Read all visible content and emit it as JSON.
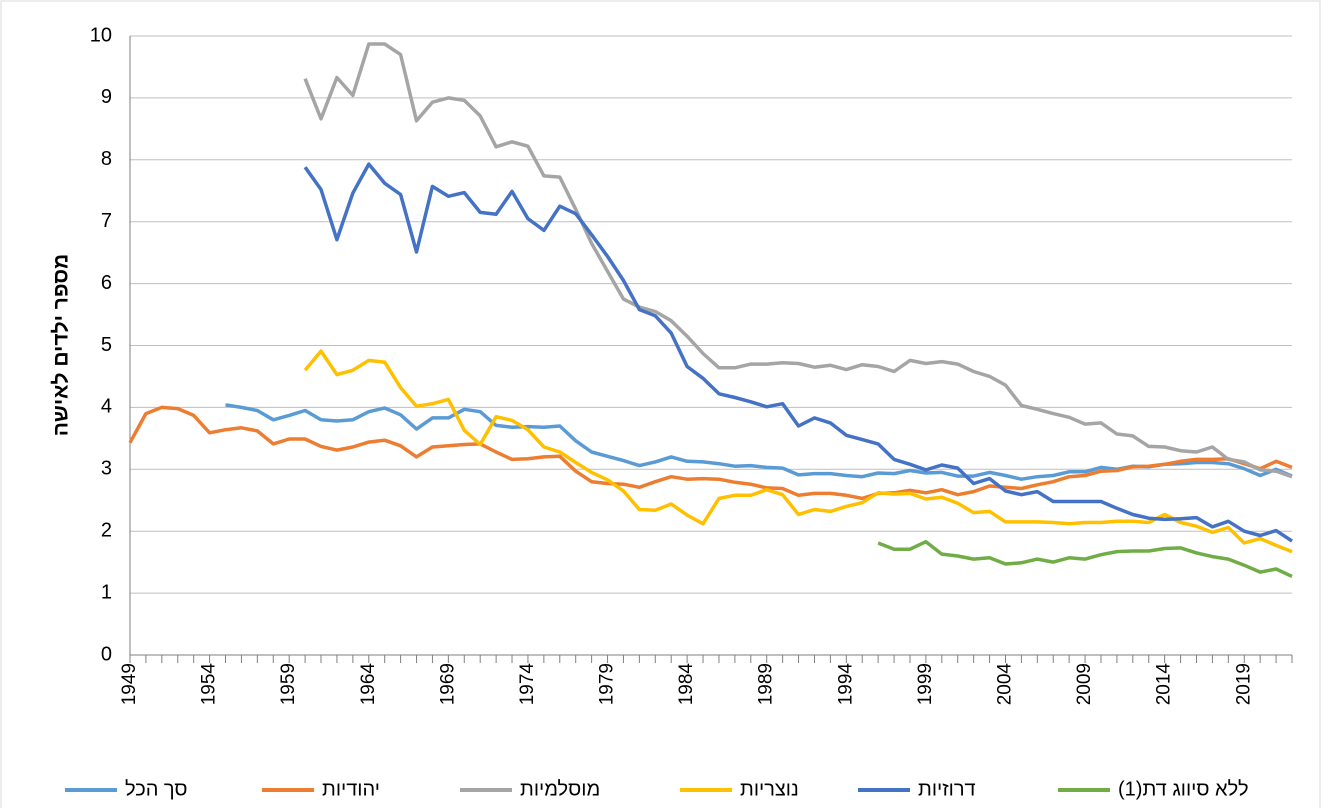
{
  "chart_data": {
    "type": "line",
    "ylabel": "מספר ילדים לאישה",
    "x": [
      1949,
      1950,
      1951,
      1952,
      1953,
      1954,
      1955,
      1956,
      1957,
      1958,
      1959,
      1960,
      1961,
      1962,
      1963,
      1964,
      1965,
      1966,
      1967,
      1968,
      1969,
      1970,
      1971,
      1972,
      1973,
      1974,
      1975,
      1976,
      1977,
      1978,
      1979,
      1980,
      1981,
      1982,
      1983,
      1984,
      1985,
      1986,
      1987,
      1988,
      1989,
      1990,
      1991,
      1992,
      1993,
      1994,
      1995,
      1996,
      1997,
      1998,
      1999,
      2000,
      2001,
      2002,
      2003,
      2004,
      2005,
      2006,
      2007,
      2008,
      2009,
      2010,
      2011,
      2012,
      2013,
      2014,
      2015,
      2016,
      2017,
      2018,
      2019,
      2020,
      2021,
      2022
    ],
    "xlim": [
      1949,
      2022
    ],
    "xticks": [
      1949,
      1954,
      1959,
      1964,
      1969,
      1974,
      1979,
      1984,
      1989,
      1994,
      1999,
      2004,
      2009,
      2014,
      2019
    ],
    "ylim": [
      0,
      10
    ],
    "yticks": [
      0,
      1,
      2,
      3,
      4,
      5,
      6,
      7,
      8,
      9,
      10
    ],
    "grid": true,
    "legend": "bottom",
    "series": [
      {
        "name": "סך הכל",
        "color": "#5b9bd5",
        "values": [
          null,
          null,
          null,
          null,
          null,
          null,
          4.04,
          4.0,
          3.95,
          3.8,
          3.87,
          3.95,
          3.8,
          3.78,
          3.8,
          3.93,
          3.99,
          3.88,
          3.65,
          3.83,
          3.83,
          3.97,
          3.93,
          3.71,
          3.68,
          3.69,
          3.68,
          3.7,
          3.46,
          3.28,
          3.21,
          3.14,
          3.06,
          3.12,
          3.2,
          3.13,
          3.12,
          3.09,
          3.05,
          3.06,
          3.03,
          3.02,
          2.91,
          2.93,
          2.93,
          2.9,
          2.88,
          2.94,
          2.93,
          2.98,
          2.94,
          2.95,
          2.89,
          2.89,
          2.95,
          2.9,
          2.84,
          2.88,
          2.9,
          2.96,
          2.96,
          3.03,
          3.0,
          3.05,
          3.04,
          3.08,
          3.09,
          3.11,
          3.11,
          3.09,
          3.01,
          2.9,
          3.0,
          2.89
        ]
      },
      {
        "name": "יהודיות",
        "color": "#ed7d31",
        "values": [
          3.43,
          3.9,
          4.0,
          3.98,
          3.87,
          3.59,
          3.64,
          3.67,
          3.62,
          3.41,
          3.49,
          3.49,
          3.37,
          3.31,
          3.36,
          3.44,
          3.47,
          3.38,
          3.2,
          3.36,
          3.38,
          3.4,
          3.41,
          3.28,
          3.16,
          3.17,
          3.2,
          3.21,
          2.97,
          2.8,
          2.77,
          2.76,
          2.71,
          2.8,
          2.88,
          2.84,
          2.85,
          2.84,
          2.79,
          2.76,
          2.7,
          2.69,
          2.58,
          2.61,
          2.61,
          2.58,
          2.53,
          2.61,
          2.62,
          2.66,
          2.62,
          2.67,
          2.59,
          2.64,
          2.73,
          2.71,
          2.69,
          2.75,
          2.8,
          2.88,
          2.9,
          2.97,
          2.98,
          3.04,
          3.05,
          3.08,
          3.13,
          3.16,
          3.16,
          3.17,
          3.09,
          3.01,
          3.13,
          3.03
        ]
      },
      {
        "name": "מוסלמיות",
        "color": "#a5a5a5",
        "values": [
          null,
          null,
          null,
          null,
          null,
          null,
          null,
          null,
          null,
          null,
          null,
          9.31,
          8.66,
          9.33,
          9.04,
          9.87,
          9.87,
          9.7,
          8.63,
          8.93,
          9.0,
          8.96,
          8.71,
          8.21,
          8.29,
          8.22,
          7.74,
          7.72,
          7.2,
          6.65,
          6.2,
          5.75,
          5.62,
          5.55,
          5.4,
          5.15,
          4.87,
          4.64,
          4.64,
          4.7,
          4.7,
          4.72,
          4.71,
          4.65,
          4.68,
          4.61,
          4.69,
          4.66,
          4.58,
          4.76,
          4.71,
          4.74,
          4.7,
          4.58,
          4.5,
          4.36,
          4.03,
          3.97,
          3.9,
          3.84,
          3.73,
          3.75,
          3.57,
          3.54,
          3.37,
          3.36,
          3.3,
          3.28,
          3.36,
          3.16,
          3.12,
          2.99,
          2.97,
          2.88
        ]
      },
      {
        "name": "נוצריות",
        "color": "#ffc000",
        "values": [
          null,
          null,
          null,
          null,
          null,
          null,
          null,
          null,
          null,
          null,
          null,
          4.6,
          4.91,
          4.53,
          4.6,
          4.76,
          4.73,
          4.32,
          4.02,
          4.06,
          4.13,
          3.63,
          3.4,
          3.85,
          3.79,
          3.64,
          3.36,
          3.28,
          3.11,
          2.95,
          2.83,
          2.65,
          2.35,
          2.34,
          2.44,
          2.26,
          2.12,
          2.53,
          2.58,
          2.58,
          2.67,
          2.59,
          2.27,
          2.35,
          2.32,
          2.4,
          2.46,
          2.62,
          2.6,
          2.61,
          2.52,
          2.55,
          2.45,
          2.3,
          2.32,
          2.15,
          2.15,
          2.15,
          2.14,
          2.12,
          2.14,
          2.14,
          2.16,
          2.16,
          2.14,
          2.27,
          2.14,
          2.08,
          1.98,
          2.06,
          1.81,
          1.88,
          1.77,
          1.67
        ]
      },
      {
        "name": "דרוזיות",
        "color": "#4472c4",
        "values": [
          null,
          null,
          null,
          null,
          null,
          null,
          null,
          null,
          null,
          null,
          null,
          7.88,
          7.52,
          6.71,
          7.46,
          7.93,
          7.62,
          7.44,
          6.51,
          7.57,
          7.41,
          7.47,
          7.15,
          7.12,
          7.49,
          7.05,
          6.86,
          7.25,
          7.13,
          6.79,
          6.44,
          6.05,
          5.58,
          5.48,
          5.2,
          4.66,
          4.47,
          4.22,
          4.16,
          4.09,
          4.01,
          4.06,
          3.7,
          3.83,
          3.75,
          3.55,
          3.48,
          3.41,
          3.16,
          3.08,
          2.99,
          3.07,
          3.02,
          2.77,
          2.85,
          2.65,
          2.59,
          2.64,
          2.48,
          2.48,
          2.48,
          2.48,
          2.37,
          2.27,
          2.21,
          2.19,
          2.2,
          2.22,
          2.07,
          2.16,
          2.0,
          1.93,
          2.01,
          1.84
        ]
      },
      {
        "name": "ללא סיווג דת(1)",
        "color": "#70ad47",
        "values": [
          null,
          null,
          null,
          null,
          null,
          null,
          null,
          null,
          null,
          null,
          null,
          null,
          null,
          null,
          null,
          null,
          null,
          null,
          null,
          null,
          null,
          null,
          null,
          null,
          null,
          null,
          null,
          null,
          null,
          null,
          null,
          null,
          null,
          null,
          null,
          null,
          null,
          null,
          null,
          null,
          null,
          null,
          null,
          null,
          null,
          null,
          null,
          1.81,
          1.71,
          1.71,
          1.83,
          1.63,
          1.6,
          1.55,
          1.57,
          1.47,
          1.49,
          1.55,
          1.5,
          1.57,
          1.55,
          1.62,
          1.67,
          1.68,
          1.68,
          1.72,
          1.73,
          1.65,
          1.59,
          1.55,
          1.45,
          1.34,
          1.39,
          1.27
        ]
      }
    ]
  }
}
